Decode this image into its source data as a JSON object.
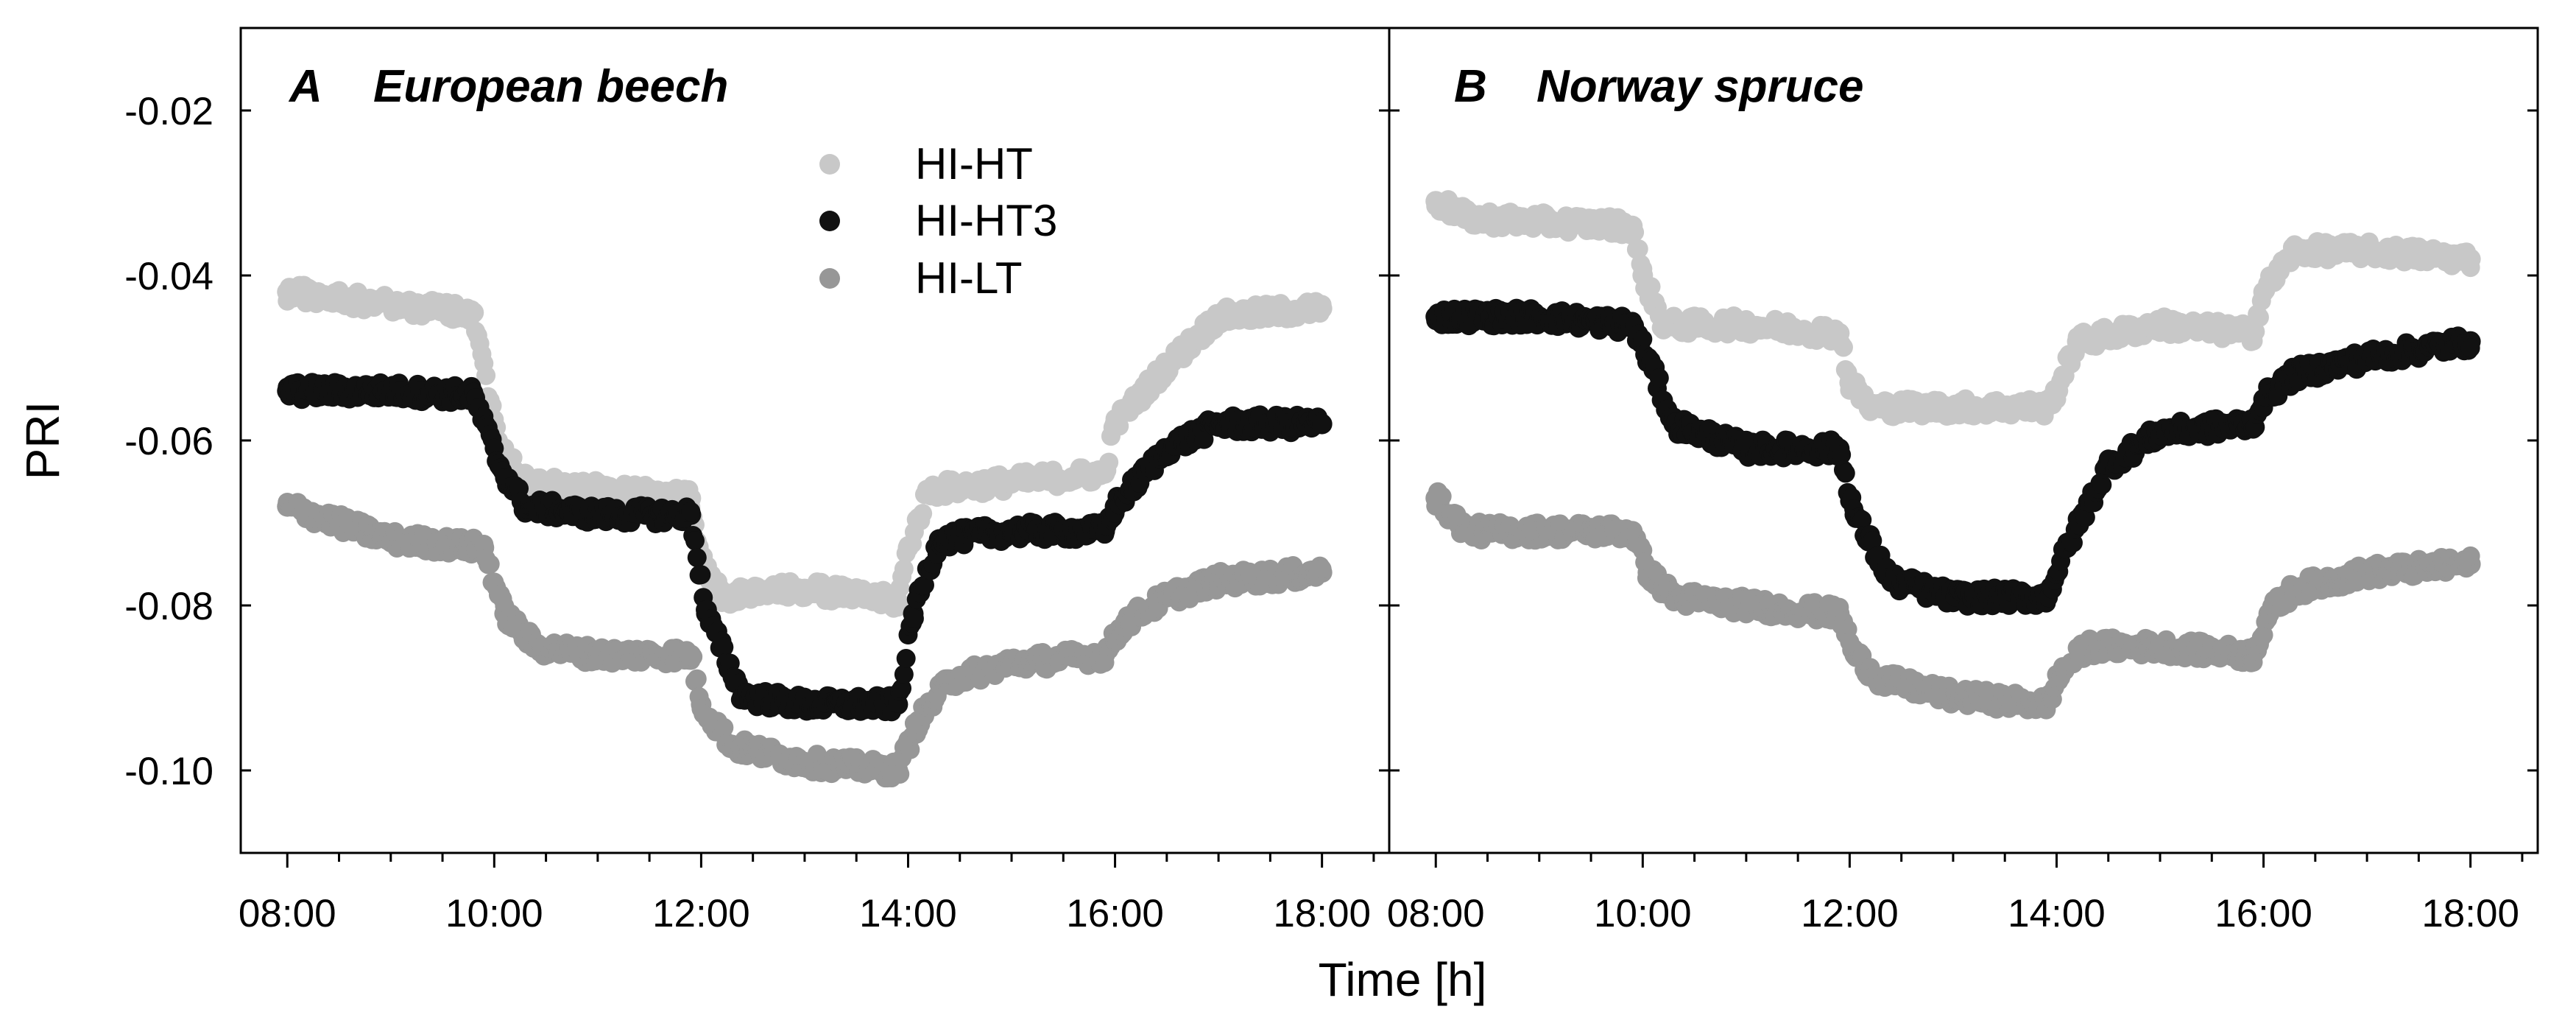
{
  "chart_data": {
    "type": "scatter",
    "xlabel": "Time [h]",
    "ylabel": "PRI",
    "ylim": [
      -0.11,
      -0.01
    ],
    "xlim": [
      7.55,
      18.65
    ],
    "y_ticks": [
      -0.02,
      -0.04,
      -0.06,
      -0.08,
      -0.1
    ],
    "y_tick_labels": [
      "-0.02",
      "-0.04",
      "-0.06",
      "-0.08",
      "-0.10"
    ],
    "x_ticks": [
      8,
      10,
      12,
      14,
      16,
      18
    ],
    "x_tick_labels": [
      "08:00",
      "10:00",
      "12:00",
      "14:00",
      "16:00",
      "18:00"
    ],
    "legend": {
      "position": "top-center",
      "entries": [
        {
          "name": "HI-HT",
          "color": "#c8c8c8"
        },
        {
          "name": "HI-HT3",
          "color": "#111111"
        },
        {
          "name": "HI-LT",
          "color": "#979797"
        }
      ]
    },
    "panels": [
      {
        "letter": "A",
        "title": "European beech",
        "series": [
          {
            "name": "HI-HT",
            "color": "#c8c8c8",
            "x": [
              8.0,
              9.0,
              9.8,
              10.05,
              10.3,
              11.0,
              11.9,
              12.0,
              12.2,
              13.0,
              13.9,
              14.0,
              14.2,
              15.0,
              15.9,
              16.0,
              16.5,
              17.0,
              18.0
            ],
            "y": [
              -0.042,
              -0.0435,
              -0.0445,
              -0.061,
              -0.065,
              -0.066,
              -0.067,
              -0.074,
              -0.079,
              -0.078,
              -0.0795,
              -0.073,
              -0.066,
              -0.065,
              -0.064,
              -0.058,
              -0.051,
              -0.045,
              -0.044
            ]
          },
          {
            "name": "HI-HT3",
            "color": "#111111",
            "x": [
              8.0,
              9.0,
              9.8,
              10.05,
              10.3,
              11.0,
              11.9,
              12.05,
              12.4,
              13.0,
              13.9,
              14.05,
              14.3,
              15.0,
              15.9,
              16.0,
              16.5,
              17.0,
              18.0
            ],
            "y": [
              -0.054,
              -0.054,
              -0.0545,
              -0.063,
              -0.068,
              -0.069,
              -0.069,
              -0.081,
              -0.091,
              -0.092,
              -0.092,
              -0.081,
              -0.072,
              -0.071,
              -0.071,
              -0.068,
              -0.061,
              -0.058,
              -0.058
            ]
          },
          {
            "name": "HI-LT",
            "color": "#979797",
            "x": [
              8.0,
              9.0,
              9.9,
              10.1,
              10.4,
              11.0,
              11.9,
              12.0,
              12.3,
              13.0,
              13.9,
              14.1,
              14.4,
              15.0,
              15.9,
              16.1,
              16.5,
              17.0,
              18.0
            ],
            "y": [
              -0.068,
              -0.072,
              -0.073,
              -0.081,
              -0.085,
              -0.086,
              -0.086,
              -0.092,
              -0.097,
              -0.099,
              -0.1,
              -0.094,
              -0.089,
              -0.087,
              -0.086,
              -0.082,
              -0.079,
              -0.077,
              -0.076
            ]
          }
        ]
      },
      {
        "letter": "B",
        "title": "Norway spruce",
        "series": [
          {
            "name": "HI-HT",
            "color": "#c8c8c8",
            "x": [
              8.0,
              8.3,
              9.0,
              9.9,
              10.0,
              10.2,
              11.0,
              11.9,
              12.0,
              12.2,
              13.0,
              13.9,
              14.0,
              14.2,
              15.0,
              15.9,
              16.0,
              16.3,
              17.0,
              18.0
            ],
            "y": [
              -0.031,
              -0.033,
              -0.0335,
              -0.034,
              -0.04,
              -0.046,
              -0.046,
              -0.047,
              -0.053,
              -0.056,
              -0.056,
              -0.056,
              -0.054,
              -0.048,
              -0.046,
              -0.047,
              -0.042,
              -0.037,
              -0.037,
              -0.038
            ]
          },
          {
            "name": "HI-HT3",
            "color": "#111111",
            "x": [
              8.0,
              9.0,
              9.9,
              10.05,
              10.3,
              11.0,
              11.9,
              12.05,
              12.4,
              13.0,
              13.9,
              14.1,
              14.5,
              15.0,
              15.9,
              16.0,
              16.3,
              17.0,
              18.0
            ],
            "y": [
              -0.045,
              -0.045,
              -0.046,
              -0.05,
              -0.058,
              -0.061,
              -0.061,
              -0.069,
              -0.077,
              -0.079,
              -0.079,
              -0.073,
              -0.063,
              -0.059,
              -0.058,
              -0.055,
              -0.052,
              -0.05,
              -0.048
            ]
          },
          {
            "name": "HI-LT",
            "color": "#979797",
            "x": [
              8.0,
              8.3,
              9.0,
              9.9,
              10.05,
              10.3,
              11.0,
              11.9,
              12.05,
              12.3,
              13.0,
              13.9,
              14.05,
              14.3,
              15.0,
              15.9,
              16.05,
              16.3,
              17.0,
              18.0
            ],
            "y": [
              -0.067,
              -0.071,
              -0.071,
              -0.071,
              -0.076,
              -0.079,
              -0.08,
              -0.081,
              -0.086,
              -0.089,
              -0.091,
              -0.092,
              -0.088,
              -0.085,
              -0.085,
              -0.086,
              -0.081,
              -0.078,
              -0.076,
              -0.075
            ]
          }
        ]
      }
    ]
  }
}
